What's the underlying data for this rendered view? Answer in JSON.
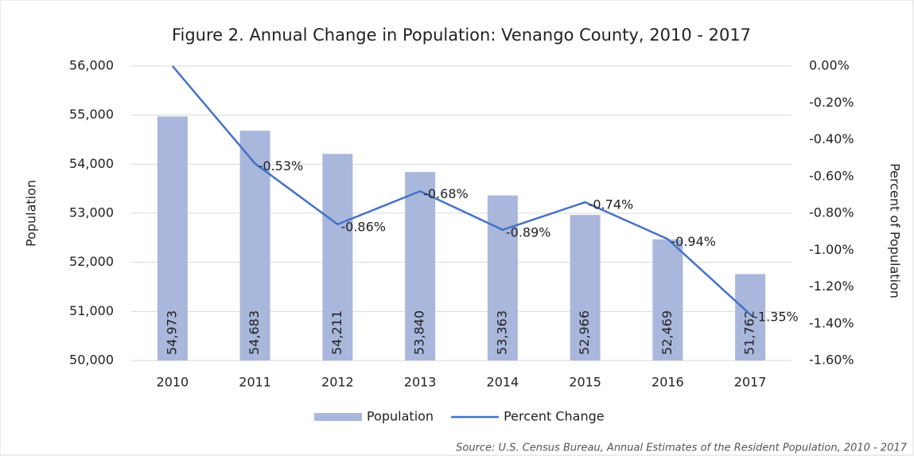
{
  "chart_data": {
    "type": "bar",
    "title": "Figure 2. Annual Change in Population: Venango County, 2010 - 2017",
    "ylabel": "Population",
    "y2label": "Percent of Population",
    "source": "Source: U.S. Census Bureau, Annual Estimates of the Resident Population, 2010 - 2017",
    "categories": [
      "2010",
      "2011",
      "2012",
      "2013",
      "2014",
      "2015",
      "2016",
      "2017"
    ],
    "series": [
      {
        "name": "Population",
        "type": "bar",
        "color": "#a9b7dc",
        "values": [
          54973,
          54683,
          54211,
          53840,
          53363,
          52966,
          52469,
          51762
        ],
        "value_labels": [
          "54,973",
          "54,683",
          "54,211",
          "53,840",
          "53,363",
          "52,966",
          "52,469",
          "51,762"
        ]
      },
      {
        "name": "Percent Change",
        "type": "line",
        "axis": "y2",
        "color": "#4472c4",
        "values": [
          0,
          -0.53,
          -0.86,
          -0.68,
          -0.89,
          -0.74,
          -0.94,
          -1.35
        ],
        "value_labels": [
          null,
          "-0.53%",
          "-0.86%",
          "-0.68%",
          "-0.89%",
          "-0.74%",
          "-0.94%",
          "-1.35%"
        ]
      }
    ],
    "ylim": [
      50000,
      56000
    ],
    "yticks": [
      {
        "value": 50000,
        "label": "50,000"
      },
      {
        "value": 51000,
        "label": "51,000"
      },
      {
        "value": 52000,
        "label": "52,000"
      },
      {
        "value": 53000,
        "label": "53,000"
      },
      {
        "value": 54000,
        "label": "54,000"
      },
      {
        "value": 55000,
        "label": "55,000"
      },
      {
        "value": 56000,
        "label": "56,000"
      }
    ],
    "y2lim": [
      -1.6,
      0
    ],
    "y2ticks": [
      {
        "value": -1.6,
        "label": "-1.60%"
      },
      {
        "value": -1.4,
        "label": "-1.40%"
      },
      {
        "value": -1.2,
        "label": "-1.20%"
      },
      {
        "value": -1.0,
        "label": "-1.00%"
      },
      {
        "value": -0.8,
        "label": "-0.80%"
      },
      {
        "value": -0.6,
        "label": "-0.60%"
      },
      {
        "value": -0.4,
        "label": "-0.40%"
      },
      {
        "value": -0.2,
        "label": "-0.20%"
      },
      {
        "value": 0,
        "label": "0.00%"
      }
    ],
    "grid": true,
    "legend": "bottom"
  }
}
